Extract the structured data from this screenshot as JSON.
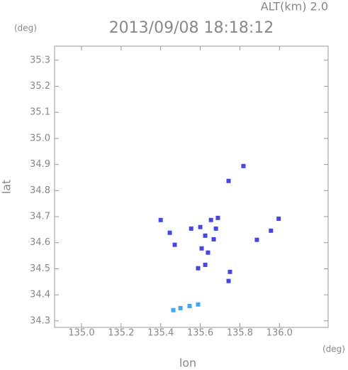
{
  "chart_data": {
    "type": "scatter",
    "title": "2013/09/08 18:18:12",
    "annotation": "ALT(km) 2.0",
    "x_unit": "(deg)",
    "y_unit": "(deg)",
    "xlabel": "lon",
    "ylabel": "lat",
    "xlim": [
      134.864,
      136.246
    ],
    "ylim": [
      34.275,
      35.354
    ],
    "xticks": [
      {
        "value": 135,
        "label": "135.0"
      },
      135.2,
      135.4,
      135.6,
      135.8,
      {
        "value": 136,
        "label": "136.0"
      }
    ],
    "yticks": [
      35.3,
      35.2,
      35.1,
      {
        "value": 35,
        "label": "35.0"
      },
      34.9,
      34.8,
      34.7,
      34.6,
      34.5,
      34.4,
      34.3
    ],
    "series": [
      {
        "color": "#4646e6",
        "x": [
          135.4,
          135.446,
          135.471,
          135.554,
          135.6,
          135.654,
          135.689,
          135.679,
          135.625,
          135.668,
          135.607,
          135.639,
          135.589,
          135.625,
          135.743,
          135.818,
          135.957,
          135.886,
          135.75,
          135.743,
          135.996
        ],
        "y": [
          34.687,
          34.638,
          34.592,
          34.654,
          34.66,
          34.687,
          34.695,
          34.654,
          34.627,
          34.613,
          34.578,
          34.562,
          34.502,
          34.515,
          34.837,
          34.894,
          34.646,
          34.611,
          34.488,
          34.453,
          34.692
        ]
      },
      {
        "color": "#3fa8f0",
        "x": [
          135.464,
          135.5,
          135.546,
          135.589
        ],
        "y": [
          34.341,
          34.349,
          34.357,
          34.363
        ]
      }
    ]
  }
}
